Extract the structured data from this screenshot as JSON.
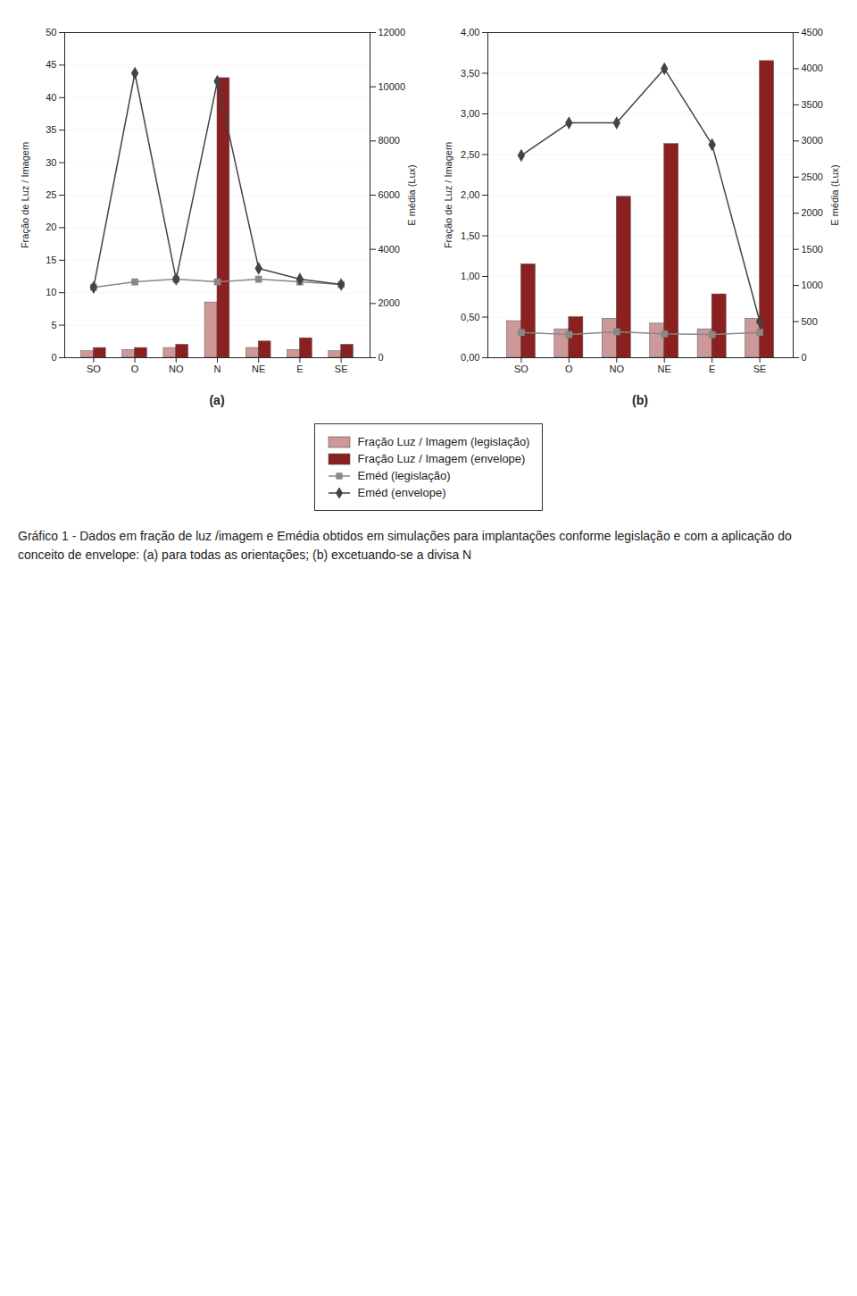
{
  "title": "Gráfico 1 - Dados em fração de luz /imagem e Emédia obtidos em simulações para implantações conforme legislação e com a aplicação do conceito de envelope: (a) para todas as orientações; (b) excetuando-se a divisa N",
  "chart_data": [
    {
      "type": "bar",
      "title": "(a)",
      "categories": [
        "SO",
        "O",
        "NO",
        "N",
        "NE",
        "E",
        "SE"
      ],
      "series": [
        {
          "name": "Fração Luz / Imagem (legislação)",
          "type": "bar",
          "color": "#cd9898",
          "values": [
            1.0,
            1.2,
            1.5,
            8.5,
            1.5,
            1.2,
            1.0
          ]
        },
        {
          "name": "Fração Luz / Imagem (envelope)",
          "type": "bar",
          "color": "#8b2020",
          "values": [
            1.5,
            1.5,
            2.0,
            43.0,
            2.5,
            3.0,
            2.0
          ]
        },
        {
          "name": "Eméd (legislação)",
          "type": "line",
          "axis": "y2",
          "color": "#888888",
          "marker": "square",
          "values": [
            2600,
            2800,
            2900,
            2800,
            2900,
            2800,
            2700
          ]
        },
        {
          "name": "Eméd (envelope)",
          "type": "line",
          "axis": "y2",
          "color": "#444444",
          "marker": "diamond",
          "values": [
            2600,
            10500,
            2900,
            10200,
            3300,
            2900,
            2700
          ]
        }
      ],
      "ylabel": "Fração de Luz / Imagem",
      "y2label": "E média (Lux)",
      "ylim": [
        0,
        50
      ],
      "yticks": [
        0,
        5,
        10,
        15,
        20,
        25,
        30,
        35,
        40,
        45,
        50
      ],
      "y2lim": [
        0,
        12000
      ],
      "y2ticks": [
        0,
        2000,
        4000,
        6000,
        8000,
        10000,
        12000
      ],
      "grid": true,
      "legend": "bottom"
    },
    {
      "type": "bar",
      "title": "(b)",
      "categories": [
        "SO",
        "O",
        "NO",
        "NE",
        "E",
        "SE"
      ],
      "series": [
        {
          "name": "Fração Luz / Imagem (legislação)",
          "type": "bar",
          "color": "#cd9898",
          "values": [
            0.45,
            0.35,
            0.48,
            0.42,
            0.35,
            0.48
          ]
        },
        {
          "name": "Fração Luz / Imagem (envelope)",
          "type": "bar",
          "color": "#8b2020",
          "values": [
            1.15,
            0.5,
            1.98,
            2.63,
            0.78,
            3.65
          ]
        },
        {
          "name": "Eméd (legislação)",
          "type": "line",
          "axis": "y2",
          "color": "#888888",
          "marker": "square",
          "values": [
            350,
            320,
            360,
            330,
            320,
            350
          ]
        },
        {
          "name": "Eméd (envelope)",
          "type": "line",
          "axis": "y2",
          "color": "#444444",
          "marker": "diamond",
          "values": [
            2800,
            3250,
            3250,
            4000,
            2950,
            500
          ]
        }
      ],
      "ylabel": "Fração de Luz / Imagem",
      "y2label": "E média (Lux)",
      "ylim": [
        0,
        4.0
      ],
      "yticks": [
        {
          "value": 0,
          "label": "0,00"
        },
        {
          "value": 0.5,
          "label": "0,50"
        },
        {
          "value": 1.0,
          "label": "1,00"
        },
        {
          "value": 1.5,
          "label": "1,50"
        },
        {
          "value": 2.0,
          "label": "2,00"
        },
        {
          "value": 2.5,
          "label": "2,50"
        },
        {
          "value": 3.0,
          "label": "3,00"
        },
        {
          "value": 3.5,
          "label": "3,50"
        },
        {
          "value": 4.0,
          "label": "4,00"
        }
      ],
      "y2lim": [
        0,
        4500
      ],
      "y2ticks": [
        0,
        500,
        1000,
        1500,
        2000,
        2500,
        3000,
        3500,
        4000,
        4500
      ],
      "grid": true,
      "legend": "bottom"
    }
  ]
}
